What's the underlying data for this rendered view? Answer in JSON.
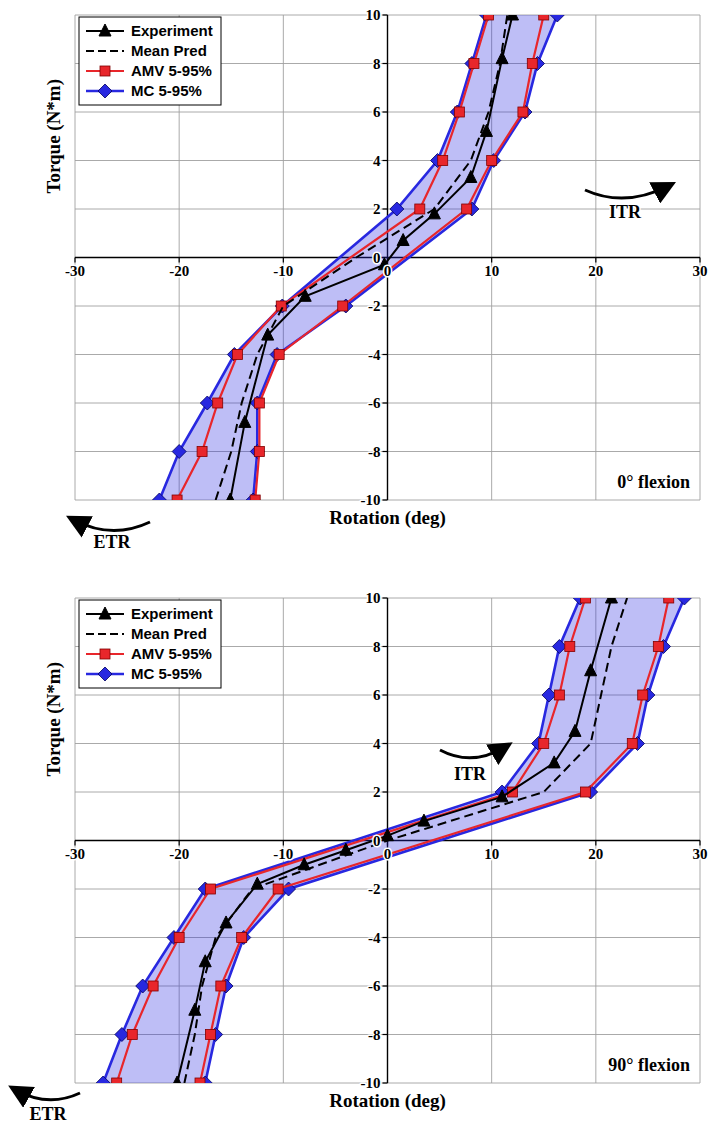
{
  "chart_data": [
    {
      "type": "line",
      "xlabel": "Rotation (deg)",
      "ylabel": "Torque (N*m)",
      "xlim": [
        -30,
        30
      ],
      "xticks": [
        -30,
        -20,
        -10,
        0,
        10,
        20,
        30
      ],
      "ylim": [
        -10,
        10
      ],
      "yticks": [
        -10,
        -8,
        -6,
        -4,
        -2,
        0,
        2,
        4,
        6,
        8,
        10
      ],
      "grid": true,
      "legend": "upper left",
      "annotations": [
        "0° flexion",
        "ITR",
        "ETR"
      ],
      "series": [
        {
          "name": "Experiment",
          "type": "line",
          "color": "#000000",
          "marker": "triangle",
          "line_style": "solid",
          "x": [
            -15.1,
            -13.7,
            -11.5,
            -7.9,
            -0.3,
            1.5,
            4.5,
            8,
            9.5,
            11,
            12
          ],
          "y": [
            -10,
            -6.8,
            -3.2,
            -1.6,
            -0.3,
            0.7,
            1.8,
            3.3,
            5.2,
            8.2,
            10
          ]
        },
        {
          "name": "Mean Pred",
          "type": "line",
          "color": "#000000",
          "marker": "none",
          "line_style": "dashed",
          "x": [
            -16.5,
            -15,
            -14,
            -12.5,
            -10,
            -3,
            4.5,
            8,
            9.7,
            10.8,
            11.5
          ],
          "y": [
            -10,
            -8,
            -6,
            -4,
            -2,
            0,
            2,
            4,
            6,
            8,
            10
          ]
        },
        {
          "name": "AMV 5-95%",
          "type": "bounds",
          "color": "#e8262b",
          "marker": "square",
          "line_style": "solid",
          "y": [
            -10,
            -8,
            -6,
            -4,
            -2,
            2,
            4,
            6,
            8,
            10
          ],
          "x_lower": [
            -20.2,
            -17.8,
            -16.3,
            -14.4,
            -10.2,
            3.1,
            5.3,
            6.9,
            8.3,
            9.7
          ],
          "x_upper": [
            -12.7,
            -12.3,
            -12.3,
            -10.4,
            -4.3,
            7.6,
            10,
            13,
            13.9,
            15
          ]
        },
        {
          "name": "MC 5-95%",
          "type": "band",
          "color": "#2828e0",
          "marker": "diamond",
          "line_style": "solid",
          "y": [
            -10,
            -8,
            -6,
            -4,
            -2,
            2,
            4,
            6,
            8,
            10
          ],
          "x_lower": [
            -21.9,
            -20,
            -17.3,
            -14.7,
            -10.1,
            0.9,
            4.8,
            6.7,
            8.1,
            9.5
          ],
          "x_upper": [
            -12.9,
            -12.5,
            -12.5,
            -10.6,
            -4,
            8.1,
            10.2,
            13.2,
            14.4,
            16.3
          ]
        }
      ]
    },
    {
      "type": "line",
      "xlabel": "Rotation (deg)",
      "ylabel": "Torque (N*m)",
      "xlim": [
        -30,
        30
      ],
      "xticks": [
        -30,
        -20,
        -10,
        0,
        10,
        20,
        30
      ],
      "ylim": [
        -10,
        10
      ],
      "yticks": [
        -10,
        -8,
        -6,
        -4,
        -2,
        0,
        2,
        4,
        6,
        8,
        10
      ],
      "grid": true,
      "legend": "upper left",
      "annotations": [
        "90° flexion",
        "ITR",
        "ETR"
      ],
      "series": [
        {
          "name": "Experiment",
          "type": "line",
          "color": "#000000",
          "marker": "triangle",
          "line_style": "solid",
          "x": [
            -20.2,
            -18.5,
            -17.5,
            -15.5,
            -12.5,
            -8,
            -4,
            0,
            3.5,
            11,
            16,
            18,
            19.5,
            21.5
          ],
          "y": [
            -10,
            -7,
            -5,
            -3.4,
            -1.8,
            -1,
            -0.4,
            0.2,
            0.8,
            1.8,
            3.2,
            4.5,
            7,
            10
          ]
        },
        {
          "name": "Mean Pred",
          "type": "line",
          "color": "#000000",
          "marker": "none",
          "line_style": "dashed",
          "x": [
            -19.5,
            -18.5,
            -17.8,
            -16.5,
            -13,
            0,
            15,
            19.5,
            20.5,
            21.5,
            23
          ],
          "y": [
            -10,
            -8,
            -6,
            -4,
            -2,
            0,
            2,
            4,
            6,
            8,
            10
          ]
        },
        {
          "name": "AMV 5-95%",
          "type": "bounds",
          "color": "#e8262b",
          "marker": "square",
          "line_style": "solid",
          "y": [
            -10,
            -8,
            -6,
            -4,
            -2,
            2,
            4,
            6,
            8,
            10
          ],
          "x_lower": [
            -26,
            -24.5,
            -22.5,
            -20,
            -17,
            12,
            15,
            16.5,
            17.5,
            19
          ],
          "x_upper": [
            -18,
            -17,
            -16,
            -14,
            -10.5,
            19,
            23.5,
            24.5,
            26,
            27
          ]
        },
        {
          "name": "MC 5-95%",
          "type": "band",
          "color": "#2828e0",
          "marker": "diamond",
          "line_style": "solid",
          "y": [
            -10,
            -8,
            -6,
            -4,
            -2,
            2,
            4,
            6,
            8,
            10
          ],
          "x_lower": [
            -27.3,
            -25.5,
            -23.5,
            -20.5,
            -17.5,
            11,
            14.5,
            15.5,
            16.5,
            18.5
          ],
          "x_upper": [
            -17.5,
            -16.5,
            -15.5,
            -13.8,
            -9.5,
            19.5,
            24,
            25,
            26.5,
            28.5
          ]
        }
      ]
    }
  ]
}
